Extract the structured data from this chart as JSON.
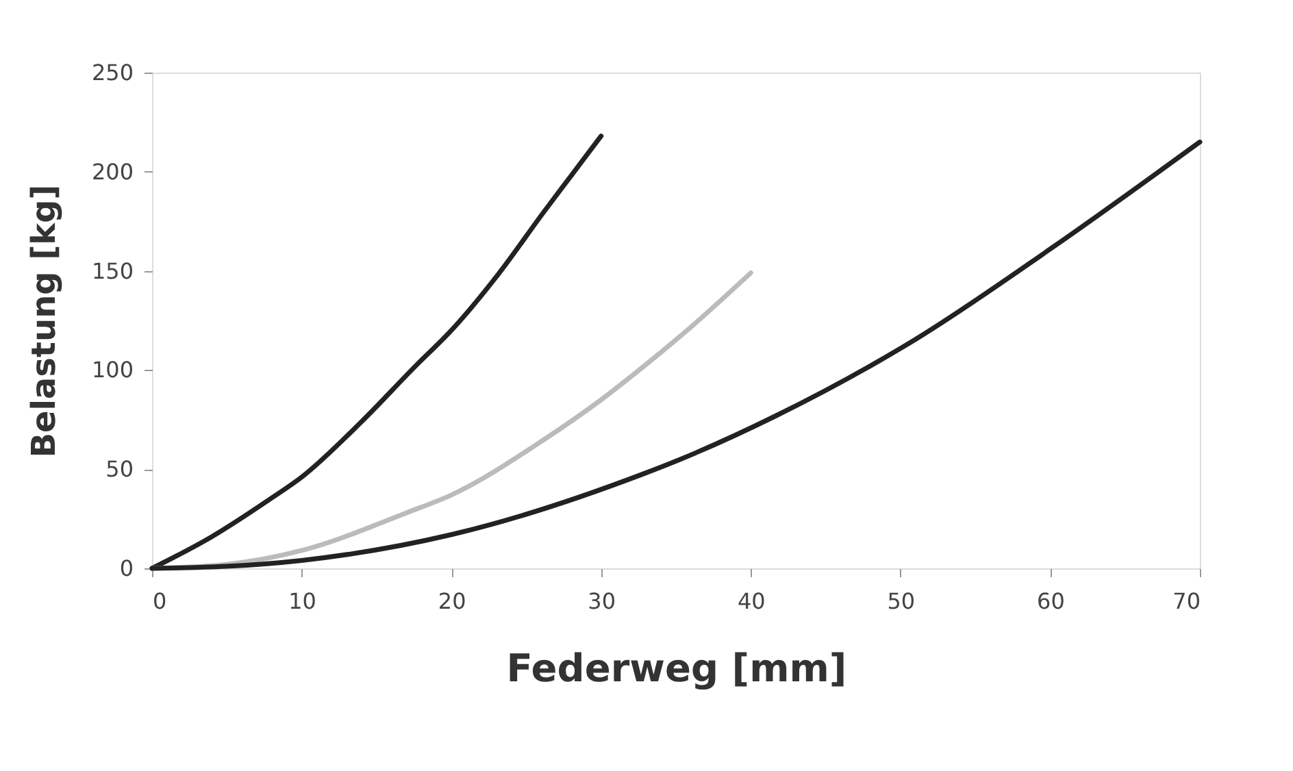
{
  "chart_data": {
    "type": "line",
    "xlabel": "Federweg [mm]",
    "ylabel": "Belastung [kg]",
    "xlim": [
      0,
      70
    ],
    "xticks": [
      0,
      10,
      20,
      30,
      40,
      50,
      60,
      70
    ],
    "ylim": [
      0,
      250
    ],
    "yticks": [
      0,
      50,
      100,
      150,
      200,
      250
    ],
    "grid": false,
    "marker": "none",
    "line_style": "solid",
    "series": [
      {
        "color": "#222222",
        "x": [
          0,
          4,
          7.9,
          10,
          14,
          17.6,
          20,
          23.1,
          26.2,
          28,
          30
        ],
        "values": [
          0,
          16,
          35,
          46,
          74,
          102,
          120,
          148,
          180,
          198,
          218
        ]
      },
      {
        "color": "#bbbbbb",
        "x": [
          0,
          5,
          10,
          17,
          20,
          26.2,
          30,
          33.2,
          36.2,
          40
        ],
        "values": [
          0,
          2,
          9,
          28,
          37,
          65,
          85,
          104,
          123,
          149
        ]
      },
      {
        "color": "#222222",
        "x": [
          0,
          5,
          10,
          20,
          32.6,
          35.3,
          41.7,
          50.9,
          60,
          70
        ],
        "values": [
          0,
          1,
          4,
          17,
          47,
          55,
          77,
          115,
          161,
          215
        ]
      }
    ]
  }
}
